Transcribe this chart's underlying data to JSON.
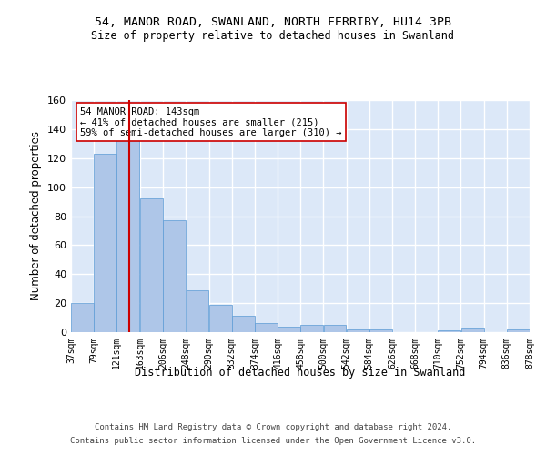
{
  "title1": "54, MANOR ROAD, SWANLAND, NORTH FERRIBY, HU14 3PB",
  "title2": "Size of property relative to detached houses in Swanland",
  "xlabel": "Distribution of detached houses by size in Swanland",
  "ylabel": "Number of detached properties",
  "footer1": "Contains HM Land Registry data © Crown copyright and database right 2024.",
  "footer2": "Contains public sector information licensed under the Open Government Licence v3.0.",
  "annotation_line1": "54 MANOR ROAD: 143sqm",
  "annotation_line2": "← 41% of detached houses are smaller (215)",
  "annotation_line3": "59% of semi-detached houses are larger (310) →",
  "property_size": 143,
  "bar_color": "#aec6e8",
  "bar_edge_color": "#5b9bd5",
  "marker_color": "#cc0000",
  "bg_color": "#dce8f8",
  "bins": [
    37,
    79,
    121,
    163,
    206,
    248,
    290,
    332,
    374,
    416,
    458,
    500,
    542,
    584,
    626,
    668,
    710,
    752,
    794,
    836,
    878
  ],
  "values": [
    20,
    123,
    133,
    92,
    77,
    29,
    19,
    11,
    6,
    4,
    5,
    5,
    2,
    2,
    0,
    0,
    1,
    3,
    0,
    2
  ],
  "ylim": [
    0,
    160
  ],
  "yticks": [
    0,
    20,
    40,
    60,
    80,
    100,
    120,
    140,
    160
  ]
}
